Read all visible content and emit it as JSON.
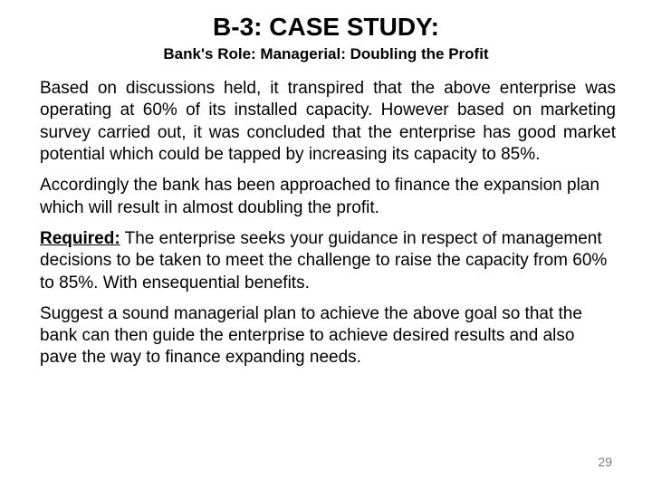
{
  "title": "B-3: CASE STUDY:",
  "subtitle": "Bank's Role: Managerial: Doubling the Profit",
  "paragraphs": {
    "p1": "Based on discussions held, it transpired that the above enterprise was operating at 60% of its installed capacity. However based on marketing survey carried out, it was concluded that the enterprise has good market potential which could be tapped by increasing its capacity to 85%.",
    "p2": "Accordingly the bank has been approached to finance the expansion plan which will result in almost doubling the profit.",
    "required_label": "Required:",
    "p3_rest": " The enterprise seeks your guidance in respect of management decisions to be taken to meet the challenge to raise the capacity from 60% to 85%. With ensequential benefits.",
    "p4": "Suggest a sound managerial plan to achieve the above goal so that the bank can then guide the enterprise to achieve desired results and also pave the way to finance expanding needs."
  },
  "page_number": "29",
  "colors": {
    "background": "#ffffff",
    "text": "#000000",
    "page_num": "#7c7c7c"
  },
  "typography": {
    "title_fontsize": 28,
    "subtitle_fontsize": 17,
    "body_fontsize": 19,
    "pagenum_fontsize": 14,
    "title_weight": "bold",
    "subtitle_weight": "bold"
  }
}
